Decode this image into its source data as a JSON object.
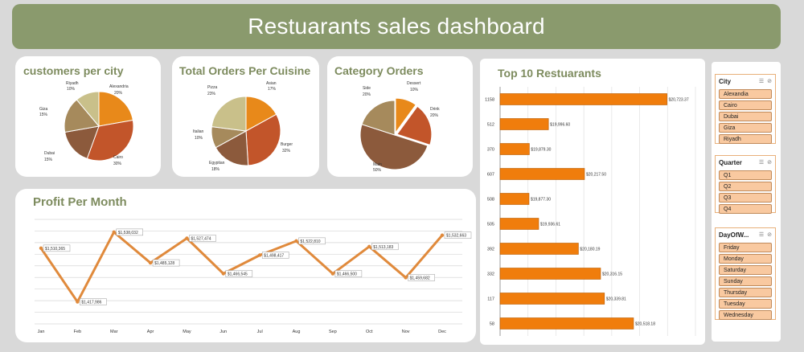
{
  "header": {
    "title": "Restuarants sales dashboard"
  },
  "colors": {
    "banner": "#8a9a6d",
    "title_green": "#7d8b5e",
    "bar_orange": "#f07d0c",
    "line_orange": "#e08a3c",
    "slicer_item": "#f9c9a0"
  },
  "customers_per_city": {
    "title": "customers per city",
    "labels": {
      "riyadh": "Riyadh",
      "riyadh_pct": "10%",
      "alexandria": "Alexandria",
      "alexandria_pct": "20%",
      "giza": "Giza",
      "giza_pct": "15%",
      "dubai": "Dubai",
      "dubai_pct": "15%",
      "cairo": "Cairo",
      "cairo_pct": "30%"
    }
  },
  "orders_per_cuisine": {
    "title": "Total Orders Per Cuisine",
    "labels": {
      "pizza": "Pizza",
      "pizza_pct": "23%",
      "asian": "Asian",
      "asian_pct": "17%",
      "italian": "Italian",
      "italian_pct": "10%",
      "burger": "Burger",
      "burger_pct": "32%",
      "egyptian": "Egyptian",
      "egyptian_pct": "18%"
    }
  },
  "category_orders": {
    "title": "Category Orders",
    "labels": {
      "side": "Side",
      "side_pct": "20%",
      "dessert": "Dessert",
      "dessert_pct": "10%",
      "drink": "Drink",
      "drink_pct": "20%",
      "main": "Main",
      "main_pct": "50%"
    }
  },
  "profit_per_month": {
    "title": "Profit Per Month",
    "months": [
      "Jan",
      "Feb",
      "Mar",
      "Apr",
      "May",
      "Jun",
      "Jul",
      "Aug",
      "Sep",
      "Oct",
      "Nov",
      "Dec"
    ],
    "labels": [
      "$1,510,365",
      "$1,417,986",
      "$1,538,032",
      "$1,485,128",
      "$1,527,474",
      "$1,466,545",
      "$1,498,417",
      "$1,522,810",
      "$1,466,500",
      "$1,513,183",
      "$1,459,682",
      "$1,532,663"
    ]
  },
  "top10": {
    "title": "Top 10 Restuarants",
    "ids": [
      "1158",
      "512",
      "370",
      "607",
      "508",
      "505",
      "392",
      "332",
      "117",
      "58"
    ],
    "labels": [
      "$20,723.37",
      "$19,996.60",
      "$19,879.30",
      "$20,217.50",
      "$19,877.30",
      "$19,936.61",
      "$20,180.19",
      "$20,316.15",
      "$20,339.81",
      "$20,518.18"
    ]
  },
  "chart_data": [
    {
      "type": "pie",
      "title": "customers per city",
      "categories": [
        "Alexandria",
        "Cairo",
        "Dubai",
        "Giza",
        "Riyadh"
      ],
      "values": [
        20,
        30,
        15,
        15,
        10
      ],
      "colors": [
        "#e8891a",
        "#c2552a",
        "#8c5a3c",
        "#a68a5c",
        "#c9c08a"
      ]
    },
    {
      "type": "pie",
      "title": "Total Orders Per Cuisine",
      "categories": [
        "Asian",
        "Burger",
        "Egyptian",
        "Italian",
        "Pizza"
      ],
      "values": [
        17,
        32,
        18,
        10,
        23
      ],
      "colors": [
        "#e8891a",
        "#c2552a",
        "#8c5a3c",
        "#a68a5c",
        "#c9c08a"
      ]
    },
    {
      "type": "pie",
      "title": "Category Orders",
      "categories": [
        "Dessert",
        "Drink",
        "Main",
        "Side"
      ],
      "values": [
        10,
        20,
        50,
        20
      ],
      "colors": [
        "#e8891a",
        "#c2552a",
        "#8c5a3c",
        "#a68a5c"
      ]
    },
    {
      "type": "line",
      "title": "Profit Per Month",
      "categories": [
        "Jan",
        "Feb",
        "Mar",
        "Apr",
        "May",
        "Jun",
        "Jul",
        "Aug",
        "Sep",
        "Oct",
        "Nov",
        "Dec"
      ],
      "values": [
        1510365,
        1417986,
        1538032,
        1485128,
        1527474,
        1466545,
        1498417,
        1522810,
        1466500,
        1513183,
        1459682,
        1532663
      ],
      "ylim": [
        1380000,
        1560000
      ],
      "grid": true
    },
    {
      "type": "bar",
      "orientation": "horizontal",
      "title": "Top 10 Restuarants",
      "categories": [
        "1158",
        "512",
        "370",
        "607",
        "508",
        "505",
        "392",
        "332",
        "117",
        "58"
      ],
      "values": [
        20723.37,
        19996.6,
        19879.3,
        20217.5,
        19877.3,
        19936.61,
        20180.19,
        20316.15,
        20339.81,
        20518.18
      ],
      "xlim": [
        19700,
        20750
      ],
      "grid": true
    }
  ],
  "slicers": [
    {
      "title": "City",
      "items": [
        "Alexandia",
        "Cairo",
        "Dubai",
        "Giza",
        "Riyadh"
      ]
    },
    {
      "title": "Quarter",
      "items": [
        "Q1",
        "Q2",
        "Q3",
        "Q4"
      ]
    },
    {
      "title": "DayOfW...",
      "items": [
        "Friday",
        "Monday",
        "Saturday",
        "Sunday",
        "Thursday",
        "Tuesday",
        "Wednesday"
      ]
    }
  ]
}
